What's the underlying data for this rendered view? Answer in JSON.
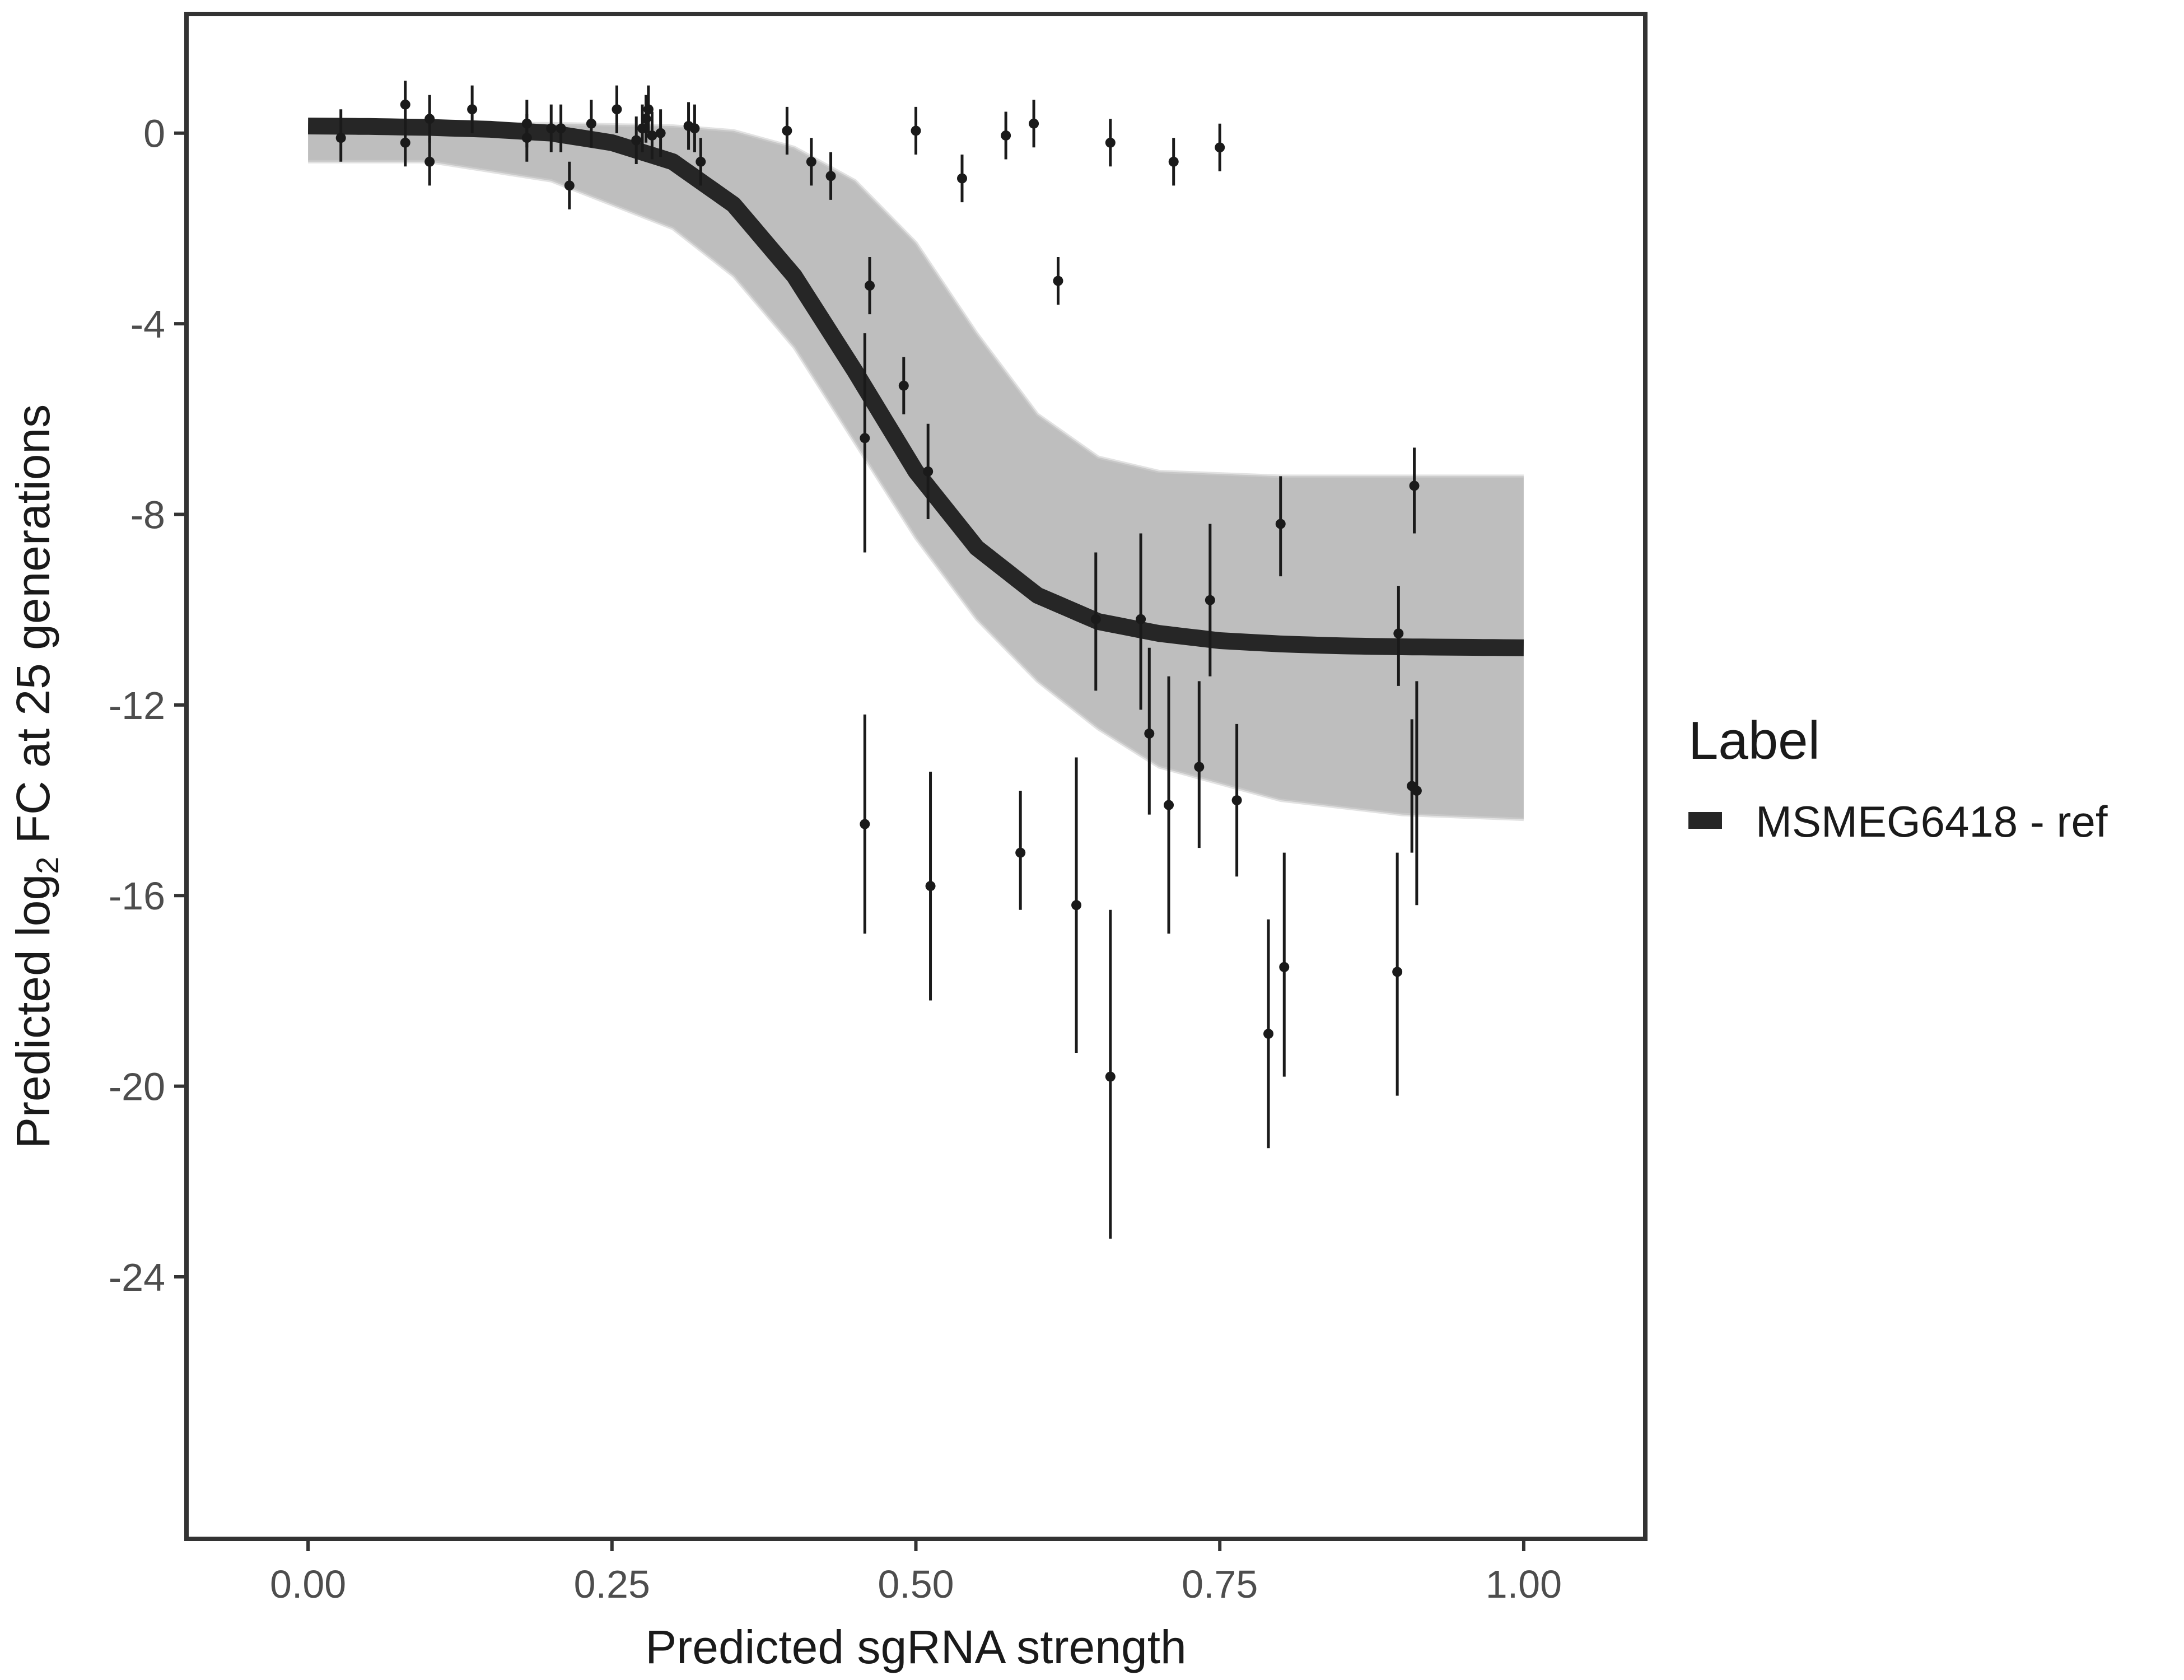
{
  "chart_data": {
    "type": "scatter",
    "xlabel": "Predicted sgRNA strength",
    "ylabel_prefix": "Predicted  log",
    "ylabel_subscript": "2",
    "ylabel_suffix": " FC at 25 generations",
    "xlim": [
      -0.1,
      1.1
    ],
    "ylim": [
      -29.5,
      2.5
    ],
    "x_ticks": [
      0.0,
      0.25,
      0.5,
      0.75,
      1.0
    ],
    "x_tick_labels": [
      "0.00",
      "0.25",
      "0.50",
      "0.75",
      "1.00"
    ],
    "y_ticks": [
      0,
      -4,
      -8,
      -12,
      -16,
      -20,
      -24
    ],
    "y_tick_labels": [
      "0",
      "-4",
      "-8",
      "-12",
      "-16",
      "-20",
      "-24"
    ],
    "grid": false,
    "legend": {
      "title": "Label",
      "position": "right",
      "entries": [
        {
          "label": "MSMEG6418 - ref",
          "color": "#262626"
        }
      ]
    },
    "fit_curve": {
      "label": "MSMEG6418 - ref",
      "color": "#262626",
      "x": [
        0.0,
        0.05,
        0.1,
        0.15,
        0.2,
        0.25,
        0.3,
        0.35,
        0.4,
        0.45,
        0.5,
        0.55,
        0.6,
        0.65,
        0.7,
        0.75,
        0.8,
        0.85,
        0.9,
        0.95,
        1.0
      ],
      "y": [
        0.15,
        0.14,
        0.12,
        0.08,
        0.0,
        -0.2,
        -0.6,
        -1.5,
        -3.0,
        -5.0,
        -7.1,
        -8.7,
        -9.7,
        -10.25,
        -10.5,
        -10.65,
        -10.72,
        -10.76,
        -10.78,
        -10.79,
        -10.8
      ]
    },
    "posterior_band": {
      "color": "#b3b3b3",
      "upper": {
        "x": [
          0.0,
          0.1,
          0.2,
          0.3,
          0.35,
          0.4,
          0.45,
          0.5,
          0.55,
          0.6,
          0.65,
          0.7,
          0.8,
          0.9,
          1.0
        ],
        "y": [
          0.2,
          0.2,
          0.2,
          0.15,
          0.05,
          -0.3,
          -1.0,
          -2.3,
          -4.2,
          -5.9,
          -6.8,
          -7.1,
          -7.2,
          -7.2,
          -7.2
        ]
      },
      "lower": {
        "x": [
          0.0,
          0.1,
          0.2,
          0.3,
          0.35,
          0.4,
          0.45,
          0.5,
          0.55,
          0.6,
          0.65,
          0.7,
          0.8,
          0.9,
          1.0
        ],
        "y": [
          -0.6,
          -0.6,
          -1.0,
          -2.0,
          -3.0,
          -4.5,
          -6.5,
          -8.5,
          -10.2,
          -11.5,
          -12.5,
          -13.3,
          -14.0,
          -14.3,
          -14.4
        ]
      }
    },
    "points": [
      {
        "x": 0.027,
        "y": -0.1,
        "lo": -0.6,
        "hi": 0.5
      },
      {
        "x": 0.08,
        "y": 0.6,
        "lo": 0.1,
        "hi": 1.1
      },
      {
        "x": 0.08,
        "y": -0.2,
        "lo": -0.7,
        "hi": 0.3
      },
      {
        "x": 0.1,
        "y": 0.3,
        "lo": -0.2,
        "hi": 0.8
      },
      {
        "x": 0.1,
        "y": -0.6,
        "lo": -1.1,
        "hi": -0.1
      },
      {
        "x": 0.135,
        "y": 0.5,
        "lo": 0.0,
        "hi": 1.0
      },
      {
        "x": 0.18,
        "y": 0.2,
        "lo": -0.3,
        "hi": 0.7
      },
      {
        "x": 0.18,
        "y": -0.1,
        "lo": -0.6,
        "hi": 0.4
      },
      {
        "x": 0.2,
        "y": 0.1,
        "lo": -0.4,
        "hi": 0.6
      },
      {
        "x": 0.208,
        "y": 0.1,
        "lo": -0.4,
        "hi": 0.6
      },
      {
        "x": 0.215,
        "y": -1.1,
        "lo": -1.6,
        "hi": -0.6
      },
      {
        "x": 0.233,
        "y": 0.2,
        "lo": -0.3,
        "hi": 0.7
      },
      {
        "x": 0.254,
        "y": 0.5,
        "lo": 0.0,
        "hi": 1.0
      },
      {
        "x": 0.27,
        "y": -0.15,
        "lo": -0.65,
        "hi": 0.35
      },
      {
        "x": 0.275,
        "y": 0.1,
        "lo": -0.4,
        "hi": 0.6
      },
      {
        "x": 0.278,
        "y": 0.3,
        "lo": -0.2,
        "hi": 0.8
      },
      {
        "x": 0.28,
        "y": 0.5,
        "lo": 0.0,
        "hi": 1.0
      },
      {
        "x": 0.283,
        "y": -0.05,
        "lo": -0.55,
        "hi": 0.45
      },
      {
        "x": 0.29,
        "y": 0.0,
        "lo": -0.5,
        "hi": 0.5
      },
      {
        "x": 0.313,
        "y": 0.15,
        "lo": -0.35,
        "hi": 0.65
      },
      {
        "x": 0.318,
        "y": 0.1,
        "lo": -0.4,
        "hi": 0.6
      },
      {
        "x": 0.323,
        "y": -0.6,
        "lo": -1.1,
        "hi": -0.1
      },
      {
        "x": 0.394,
        "y": 0.05,
        "lo": -0.45,
        "hi": 0.55
      },
      {
        "x": 0.414,
        "y": -0.6,
        "lo": -1.1,
        "hi": -0.1
      },
      {
        "x": 0.43,
        "y": -0.9,
        "lo": -1.4,
        "hi": -0.4
      },
      {
        "x": 0.458,
        "y": -6.4,
        "lo": -8.8,
        "hi": -4.2
      },
      {
        "x": 0.462,
        "y": -3.2,
        "lo": -3.8,
        "hi": -2.6
      },
      {
        "x": 0.458,
        "y": -14.5,
        "lo": -16.8,
        "hi": -12.2
      },
      {
        "x": 0.49,
        "y": -5.3,
        "lo": -5.9,
        "hi": -4.7
      },
      {
        "x": 0.5,
        "y": 0.05,
        "lo": -0.45,
        "hi": 0.55
      },
      {
        "x": 0.51,
        "y": -7.1,
        "lo": -8.1,
        "hi": -6.1
      },
      {
        "x": 0.512,
        "y": -15.8,
        "lo": -18.2,
        "hi": -13.4
      },
      {
        "x": 0.538,
        "y": -0.95,
        "lo": -1.45,
        "hi": -0.45
      },
      {
        "x": 0.574,
        "y": -0.05,
        "lo": -0.55,
        "hi": 0.45
      },
      {
        "x": 0.586,
        "y": -15.1,
        "lo": -16.3,
        "hi": -13.8
      },
      {
        "x": 0.597,
        "y": 0.2,
        "lo": -0.3,
        "hi": 0.7
      },
      {
        "x": 0.617,
        "y": -3.1,
        "lo": -3.6,
        "hi": -2.6
      },
      {
        "x": 0.632,
        "y": -16.2,
        "lo": -19.3,
        "hi": -13.1
      },
      {
        "x": 0.648,
        "y": -10.2,
        "lo": -11.7,
        "hi": -8.8
      },
      {
        "x": 0.66,
        "y": -0.2,
        "lo": -0.7,
        "hi": 0.3
      },
      {
        "x": 0.66,
        "y": -19.8,
        "lo": -23.2,
        "hi": -16.3
      },
      {
        "x": 0.685,
        "y": -10.2,
        "lo": -12.1,
        "hi": -8.4
      },
      {
        "x": 0.692,
        "y": -12.6,
        "lo": -14.3,
        "hi": -10.8
      },
      {
        "x": 0.708,
        "y": -14.1,
        "lo": -16.8,
        "hi": -11.4
      },
      {
        "x": 0.712,
        "y": -0.6,
        "lo": -1.1,
        "hi": -0.1
      },
      {
        "x": 0.733,
        "y": -13.3,
        "lo": -15.0,
        "hi": -11.5
      },
      {
        "x": 0.742,
        "y": -9.8,
        "lo": -11.4,
        "hi": -8.2
      },
      {
        "x": 0.75,
        "y": -0.3,
        "lo": -0.8,
        "hi": 0.2
      },
      {
        "x": 0.764,
        "y": -14.0,
        "lo": -15.6,
        "hi": -12.4
      },
      {
        "x": 0.79,
        "y": -18.9,
        "lo": -21.3,
        "hi": -16.5
      },
      {
        "x": 0.8,
        "y": -8.2,
        "lo": -9.3,
        "hi": -7.2
      },
      {
        "x": 0.803,
        "y": -17.5,
        "lo": -19.8,
        "hi": -15.1
      },
      {
        "x": 0.896,
        "y": -17.6,
        "lo": -20.2,
        "hi": -15.1
      },
      {
        "x": 0.897,
        "y": -10.5,
        "lo": -11.6,
        "hi": -9.5
      },
      {
        "x": 0.908,
        "y": -13.7,
        "lo": -15.1,
        "hi": -12.3
      },
      {
        "x": 0.91,
        "y": -7.4,
        "lo": -8.4,
        "hi": -6.6
      },
      {
        "x": 0.912,
        "y": -13.8,
        "lo": -16.2,
        "hi": -11.5
      }
    ]
  }
}
